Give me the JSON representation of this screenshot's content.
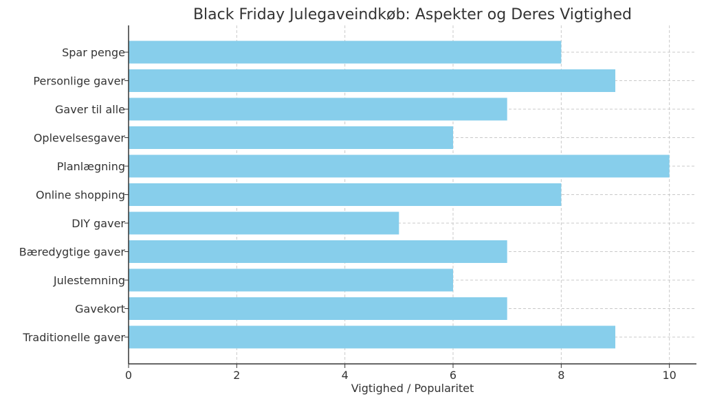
{
  "chart_data": {
    "type": "bar",
    "orientation": "horizontal",
    "title": "Black Friday Julegaveindkøb: Aspekter og Deres Vigtighed",
    "xlabel": "Vigtighed / Popularitet",
    "ylabel": "",
    "categories": [
      "Spar penge",
      "Personlige gaver",
      "Gaver til alle",
      "Oplevelsesgaver",
      "Planlægning",
      "Online shopping",
      "DIY gaver",
      "Bæredygtige gaver",
      "Julestemning",
      "Gavekort",
      "Traditionelle gaver"
    ],
    "values": [
      8,
      9,
      7,
      6,
      10,
      8,
      5,
      7,
      6,
      7,
      9
    ],
    "xlim": [
      0,
      10.5
    ],
    "xticks": [
      0,
      2,
      4,
      6,
      8,
      10
    ],
    "grid": true,
    "bar_color": "#87CEEB"
  }
}
